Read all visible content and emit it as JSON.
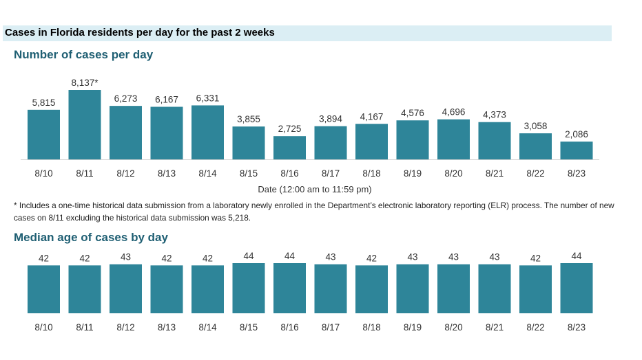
{
  "header": {
    "title": "Cases in Florida residents per day for the past 2 weeks"
  },
  "chart_data": [
    {
      "type": "bar",
      "title": "Number of cases per day",
      "xlabel": "Date (12:00 am to 11:59 pm)",
      "ylabel": "",
      "categories": [
        "8/10",
        "8/11",
        "8/12",
        "8/13",
        "8/14",
        "8/15",
        "8/16",
        "8/17",
        "8/18",
        "8/19",
        "8/20",
        "8/21",
        "8/22",
        "8/23"
      ],
      "values": [
        5815,
        8137,
        6273,
        6167,
        6331,
        3855,
        2725,
        3894,
        4167,
        4576,
        4696,
        4373,
        3058,
        2086
      ],
      "data_labels": [
        "5,815",
        "8,137*",
        "6,273",
        "6,167",
        "6,331",
        "3,855",
        "2,725",
        "3,894",
        "4,167",
        "4,576",
        "4,696",
        "4,373",
        "3,058",
        "2,086"
      ],
      "ylim": [
        0,
        8137
      ],
      "grid": false,
      "bar_color": "#2e8599"
    },
    {
      "type": "bar",
      "title": "Median age of cases by day",
      "xlabel": "",
      "ylabel": "",
      "categories": [
        "8/10",
        "8/11",
        "8/12",
        "8/13",
        "8/14",
        "8/15",
        "8/16",
        "8/17",
        "8/18",
        "8/19",
        "8/20",
        "8/21",
        "8/22",
        "8/23"
      ],
      "values": [
        42,
        42,
        43,
        42,
        42,
        44,
        44,
        43,
        42,
        43,
        43,
        43,
        42,
        44
      ],
      "data_labels": [
        "42",
        "42",
        "43",
        "42",
        "42",
        "44",
        "44",
        "43",
        "42",
        "43",
        "43",
        "43",
        "42",
        "44"
      ],
      "ylim": [
        0,
        44
      ],
      "grid": false,
      "bar_color": "#2e8599"
    }
  ],
  "footnote": "* Includes a one-time historical data submission from a laboratory newly enrolled in the Department’s electronic laboratory reporting (ELR) process. The number of new cases on 8/11 excluding the historical data submission was 5,218."
}
